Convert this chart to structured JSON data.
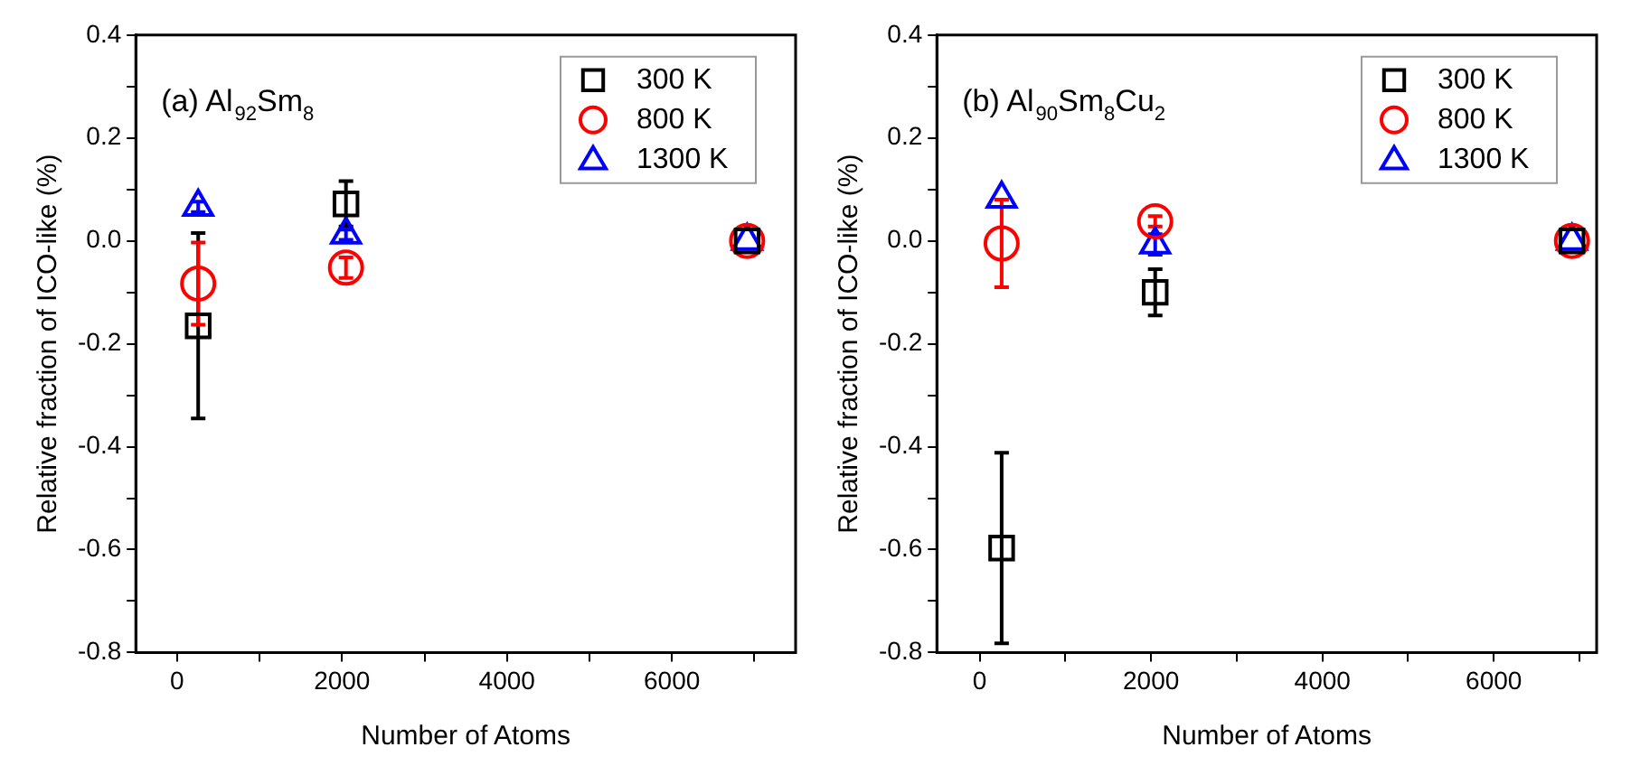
{
  "chart_data": [
    {
      "type": "scatter",
      "xlabel": "Number of Atoms",
      "ylabel": "Relative fraction of ICO-like (%)",
      "annotations": [
        "(a) Al$_{92}$Sm$_{8}$"
      ],
      "x": [
        256,
        2048,
        6912
      ],
      "xlim": [
        -500,
        7500
      ],
      "xticks": [
        0,
        {
          "value": 1000,
          "label": null
        },
        2000,
        {
          "value": 3000,
          "label": null
        },
        4000,
        {
          "value": 5000,
          "label": null
        },
        6000,
        {
          "value": 7000,
          "label": null
        }
      ],
      "ylim": [
        -0.8,
        0.4
      ],
      "yticks": [
        -0.8,
        {
          "value": -0.7,
          "label": null
        },
        -0.6,
        {
          "value": -0.5,
          "label": null
        },
        -0.4,
        {
          "value": -0.3,
          "label": null
        },
        -0.2,
        {
          "value": -0.1,
          "label": null
        },
        {
          "value": 0,
          "label": "0.0"
        },
        {
          "value": 0.1,
          "label": null
        },
        0.2,
        {
          "value": 0.3,
          "label": null
        },
        0.4
      ],
      "grid": false,
      "legend": "top right",
      "series": [
        {
          "name": "300 K",
          "color": "#000000",
          "marker": "square",
          "values": [
            -0.165,
            0.072,
            0
          ],
          "errors": [
            0.18,
            0.044,
            null
          ]
        },
        {
          "name": "800 K",
          "color": "#ff0000",
          "marker": "circle",
          "values": [
            -0.083,
            -0.052,
            0
          ],
          "errors": [
            0.08,
            0.02,
            null
          ]
        },
        {
          "name": "1300 K",
          "color": "#0000ff",
          "marker": "triangle",
          "values": [
            0.066,
            0.012,
            0
          ],
          "errors": [
            0.01,
            0.01,
            null
          ]
        }
      ]
    },
    {
      "type": "scatter",
      "xlabel": "Number of Atoms",
      "ylabel": "Relative fraction of ICO-like (%)",
      "annotations": [
        "(b) Al$_{90}$Sm$_{8}$Cu$_{2}$"
      ],
      "x": [
        256,
        2048,
        6912
      ],
      "xlim": [
        -500,
        7200
      ],
      "xticks": [
        0,
        {
          "value": 1000,
          "label": null
        },
        2000,
        {
          "value": 3000,
          "label": null
        },
        4000,
        {
          "value": 5000,
          "label": null
        },
        6000,
        {
          "value": 7000,
          "label": null
        }
      ],
      "ylim": [
        -0.8,
        0.4
      ],
      "yticks": [
        -0.8,
        {
          "value": -0.7,
          "label": null
        },
        -0.6,
        {
          "value": -0.5,
          "label": null
        },
        -0.4,
        {
          "value": -0.3,
          "label": null
        },
        -0.2,
        {
          "value": -0.1,
          "label": null
        },
        {
          "value": 0,
          "label": "0.0"
        },
        {
          "value": 0.1,
          "label": null
        },
        0.2,
        {
          "value": 0.3,
          "label": null
        },
        0.4
      ],
      "grid": false,
      "legend": "top right",
      "series": [
        {
          "name": "300 K",
          "color": "#000000",
          "marker": "square",
          "values": [
            -0.597,
            -0.1,
            0
          ],
          "errors": [
            0.185,
            0.045,
            null
          ]
        },
        {
          "name": "800 K",
          "color": "#ff0000",
          "marker": "circle",
          "values": [
            -0.005,
            0.038,
            0
          ],
          "errors": [
            0.085,
            0.01,
            null
          ]
        },
        {
          "name": "1300 K",
          "color": "#0000ff",
          "marker": "triangle",
          "values": [
            0.082,
            -0.007,
            0
          ],
          "errors": [
            null,
            0.02,
            null
          ]
        }
      ]
    }
  ]
}
